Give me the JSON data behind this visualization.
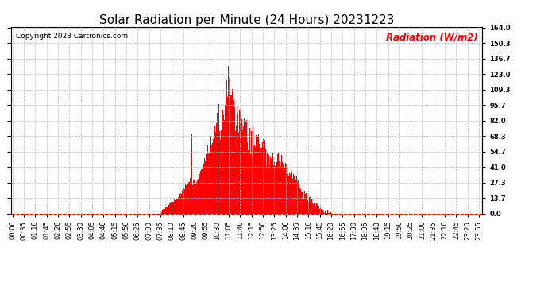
{
  "title": "Solar Radiation per Minute (24 Hours) 20231223",
  "ylabel_text": "Radiation (W/m2)",
  "copyright": "Copyright 2023 Cartronics.com",
  "bar_color": "#FF0000",
  "background_color": "#FFFFFF",
  "grid_color": "#BBBBBB",
  "yticks": [
    0.0,
    13.7,
    27.3,
    41.0,
    54.7,
    68.3,
    82.0,
    95.7,
    109.3,
    123.0,
    136.7,
    150.3,
    164.0
  ],
  "ymax": 164.0,
  "ymin": 0.0,
  "title_fontsize": 11,
  "tick_fontsize": 6.0,
  "copyright_fontsize": 6.5,
  "ylabel_fontsize": 8.5
}
